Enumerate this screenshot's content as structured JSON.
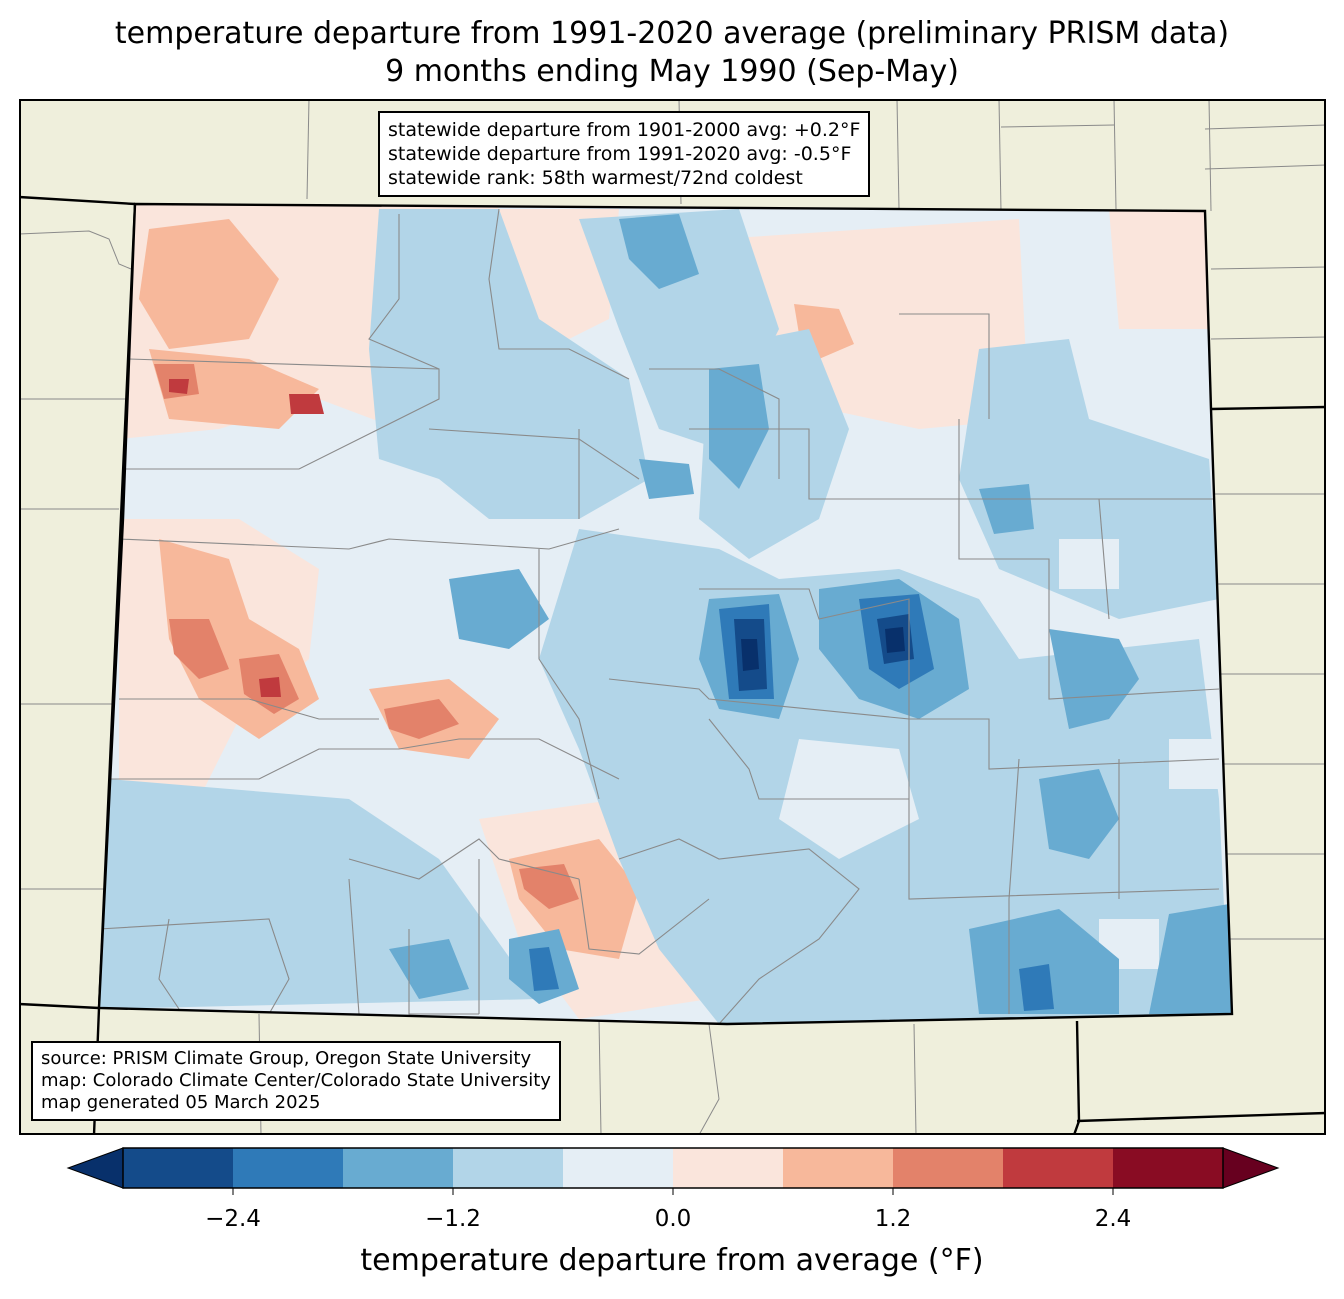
{
  "title": {
    "line1": "temperature departure from 1991-2020 average (preliminary PRISM data)",
    "line2": "9 months ending May 1990 (Sep-May)"
  },
  "stats_box": {
    "line1": "statewide departure from 1901-2000 avg: +0.2°F",
    "line2": "statewide departure from 1991-2020 avg: -0.5°F",
    "line3": "statewide rank: 58th warmest/72nd coldest"
  },
  "source_box": {
    "line1": "source: PRISM Climate Group, Oregon State University",
    "line2": "map: Colorado Climate Center/Colorado State University",
    "line3": "map generated 05 March 2025"
  },
  "colorbar": {
    "label": "temperature departure from average (°F)",
    "ticks": [
      "−2.4",
      "−1.2",
      "0.0",
      "1.2",
      "2.4"
    ],
    "tick_values": [
      -2.4,
      -1.2,
      0.0,
      1.2,
      2.4
    ],
    "range": [
      -3.0,
      3.0
    ],
    "bins": [
      {
        "from": -3.0,
        "to": -2.4,
        "color": "#144b8a"
      },
      {
        "from": -2.4,
        "to": -1.8,
        "color": "#2f7ab8"
      },
      {
        "from": -1.8,
        "to": -1.2,
        "color": "#68abd1"
      },
      {
        "from": -1.2,
        "to": -0.6,
        "color": "#b2d5e8"
      },
      {
        "from": -0.6,
        "to": 0.0,
        "color": "#e5eef5"
      },
      {
        "from": 0.0,
        "to": 0.6,
        "color": "#fae5dc"
      },
      {
        "from": 0.6,
        "to": 1.2,
        "color": "#f7b89b"
      },
      {
        "from": 1.2,
        "to": 1.8,
        "color": "#e3826a"
      },
      {
        "from": 1.8,
        "to": 2.4,
        "color": "#c03a3e"
      },
      {
        "from": 2.4,
        "to": 3.0,
        "color": "#890c23"
      }
    ],
    "extend_low_color": "#08306b",
    "extend_high_color": "#67001f"
  },
  "map": {
    "background_color": "#efefdc",
    "state_fill_color": "#e5eef5"
  }
}
